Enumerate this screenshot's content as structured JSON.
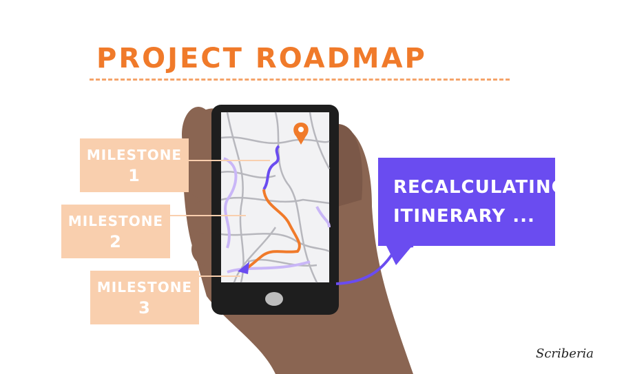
{
  "title": "PROJECT ROADMAP",
  "milestones": [
    {
      "label": "MILESTONE",
      "number": "1"
    },
    {
      "label": "MILESTONE",
      "number": "2"
    },
    {
      "label": "MILESTONE",
      "number": "3"
    }
  ],
  "bubble": {
    "line1": "RECALCULATING",
    "line2": "ITINERARY ..."
  },
  "signature": "Scriberia",
  "colors": {
    "accent_orange": "#f07a2a",
    "milestone_fill": "#f9cfae",
    "bubble_purple": "#6a4cf0",
    "phone_body": "#1e1e1e",
    "hand": "#8a6552"
  },
  "icons": [
    "map-pin-icon",
    "navigation-arrow-icon",
    "home-button-icon"
  ]
}
